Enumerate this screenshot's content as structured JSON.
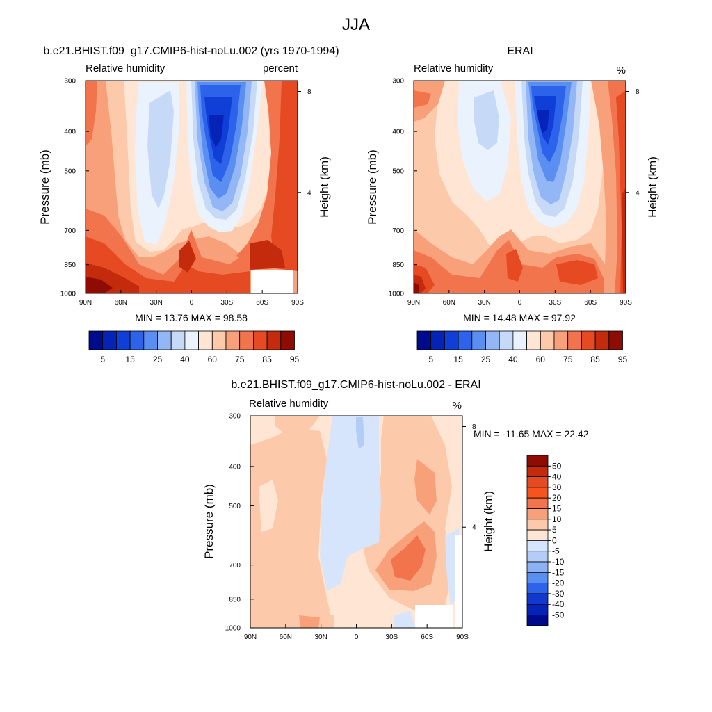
{
  "figure": {
    "title": "JJA"
  },
  "chart_data": [
    {
      "type": "heatmap",
      "title": "b.e21.BHIST.f09_g17.CMIP6-hist-noLu.002 (yrs 1970-1994)",
      "subtitle_left": "Relative humidity",
      "subtitle_right": "percent",
      "ylabel": "Pressure (mb)",
      "ylabel_right": "Height (km)",
      "x_ticks": [
        "90N",
        "60N",
        "30N",
        "0",
        "30S",
        "60S",
        "90S"
      ],
      "y_ticks": [
        "300",
        "400",
        "500",
        "700",
        "850",
        "1000"
      ],
      "y_ticks_right": [
        "8",
        "4"
      ],
      "stats": "MIN =  13.76  MAX =  98.58",
      "ylim": [
        1000,
        300
      ],
      "colorbar_labels": [
        "5",
        "15",
        "25",
        "40",
        "60",
        "75",
        "85",
        "95"
      ],
      "palette": [
        "#000a8c",
        "#0623b8",
        "#0f3fd6",
        "#2c63ea",
        "#5a8ff1",
        "#92b6f6",
        "#c6daf8",
        "#eaf2fd",
        "#ffe6d4",
        "#fcc9ab",
        "#f8a07a",
        "#f1744d",
        "#e64a22",
        "#c42a0c",
        "#8e0c03"
      ]
    },
    {
      "type": "heatmap",
      "title": "ERAI",
      "subtitle_left": "Relative humidity",
      "subtitle_right": "%",
      "ylabel": "Pressure (mb)",
      "ylabel_right": "Height (km)",
      "x_ticks": [
        "90N",
        "60N",
        "30N",
        "0",
        "30S",
        "60S",
        "90S"
      ],
      "y_ticks": [
        "300",
        "400",
        "500",
        "700",
        "850",
        "1000"
      ],
      "y_ticks_right": [
        "8",
        "4"
      ],
      "stats": "MIN =  14.48  MAX =  97.92",
      "ylim": [
        1000,
        300
      ],
      "colorbar_labels": [
        "5",
        "15",
        "25",
        "40",
        "60",
        "75",
        "85",
        "95"
      ],
      "palette": [
        "#000a8c",
        "#0623b8",
        "#0f3fd6",
        "#2c63ea",
        "#5a8ff1",
        "#92b6f6",
        "#c6daf8",
        "#eaf2fd",
        "#ffe6d4",
        "#fcc9ab",
        "#f8a07a",
        "#f1744d",
        "#e64a22",
        "#c42a0c",
        "#8e0c03"
      ]
    },
    {
      "type": "heatmap",
      "title": "b.e21.BHIST.f09_g17.CMIP6-hist-noLu.002 - ERAI",
      "subtitle_left": "Relative humidity",
      "subtitle_right": "%",
      "ylabel": "Pressure (mb)",
      "ylabel_right": "Height (km)",
      "x_ticks": [
        "90N",
        "60N",
        "30N",
        "0",
        "30S",
        "60S",
        "90S"
      ],
      "y_ticks": [
        "300",
        "400",
        "500",
        "700",
        "850",
        "1000"
      ],
      "y_ticks_right": [
        "8",
        "4"
      ],
      "stats": "MIN = -11.65  MAX =  22.42",
      "ylim": [
        1000,
        300
      ],
      "colorbar_labels": [
        "50",
        "40",
        "30",
        "20",
        "15",
        "10",
        "5",
        "0",
        "-5",
        "-10",
        "-15",
        "-20",
        "-30",
        "-40",
        "-50"
      ],
      "palette": [
        "#8e0c03",
        "#c42a0c",
        "#e64a22",
        "#f6541e",
        "#f1744d",
        "#f8a07a",
        "#fcc9ab",
        "#ffe6d4",
        "#d6e5fb",
        "#b3cdf7",
        "#8cb2f4",
        "#5a8ff1",
        "#2c63ea",
        "#1238d0",
        "#0623b8",
        "#000a8c"
      ]
    }
  ]
}
